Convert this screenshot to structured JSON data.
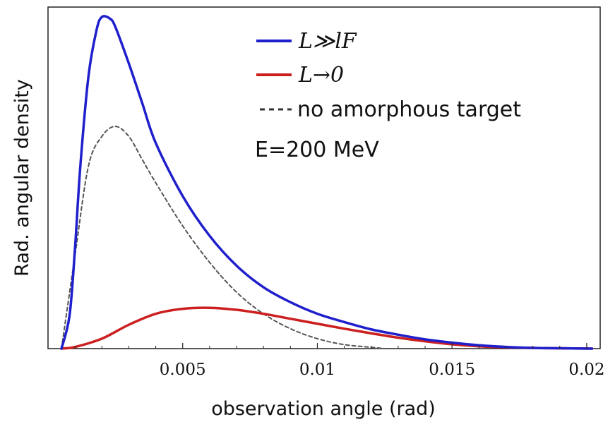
{
  "chart_data": {
    "type": "line",
    "xlabel": "observation angle (rad)",
    "ylabel": "Rad. angular density",
    "xlim": [
      0,
      0.0205
    ],
    "ylim": [
      0,
      1.03
    ],
    "xticks": [
      0.005,
      0.01,
      0.015,
      0.02
    ],
    "xtick_labels": [
      "0.005",
      "0.01",
      "0.015",
      "0.02"
    ],
    "yticks_shown": false,
    "grid": false,
    "legend_position": "top-right",
    "annotation": "E=200 MeV",
    "series": [
      {
        "name": "L≫lF",
        "color": "#1f1fcc",
        "style": "solid",
        "x": [
          0.0005,
          0.0008,
          0.001,
          0.0012,
          0.0015,
          0.0018,
          0.002,
          0.0023,
          0.0025,
          0.003,
          0.0035,
          0.004,
          0.005,
          0.006,
          0.007,
          0.008,
          0.009,
          0.01,
          0.011,
          0.012,
          0.013,
          0.014,
          0.015,
          0.016,
          0.017,
          0.018,
          0.019,
          0.0202
        ],
        "y": [
          0.0,
          0.1,
          0.3,
          0.55,
          0.82,
          0.96,
          1.0,
          0.995,
          0.97,
          0.86,
          0.74,
          0.62,
          0.46,
          0.34,
          0.25,
          0.185,
          0.14,
          0.105,
          0.08,
          0.058,
          0.042,
          0.028,
          0.018,
          0.01,
          0.005,
          0.002,
          0.001,
          0.0
        ]
      },
      {
        "name": "L→0",
        "color": "#cc1f1f",
        "style": "solid",
        "x": [
          0.0005,
          0.001,
          0.002,
          0.003,
          0.004,
          0.005,
          0.006,
          0.007,
          0.008,
          0.009,
          0.01,
          0.011,
          0.012,
          0.013,
          0.014,
          0.015,
          0.016,
          0.017,
          0.018,
          0.019,
          0.0202
        ],
        "y": [
          0.0,
          0.005,
          0.03,
          0.072,
          0.105,
          0.12,
          0.123,
          0.117,
          0.105,
          0.09,
          0.075,
          0.06,
          0.046,
          0.033,
          0.022,
          0.013,
          0.007,
          0.004,
          0.002,
          0.001,
          0.0
        ]
      },
      {
        "name": "no amorphous target",
        "color": "#555555",
        "style": "dashed",
        "x": [
          0.0005,
          0.001,
          0.0015,
          0.002,
          0.0025,
          0.003,
          0.0035,
          0.004,
          0.005,
          0.006,
          0.007,
          0.008,
          0.009,
          0.01,
          0.011,
          0.012,
          0.0125
        ],
        "y": [
          0.0,
          0.28,
          0.55,
          0.64,
          0.67,
          0.64,
          0.57,
          0.5,
          0.37,
          0.26,
          0.17,
          0.105,
          0.06,
          0.03,
          0.012,
          0.004,
          0.0
        ]
      }
    ]
  }
}
